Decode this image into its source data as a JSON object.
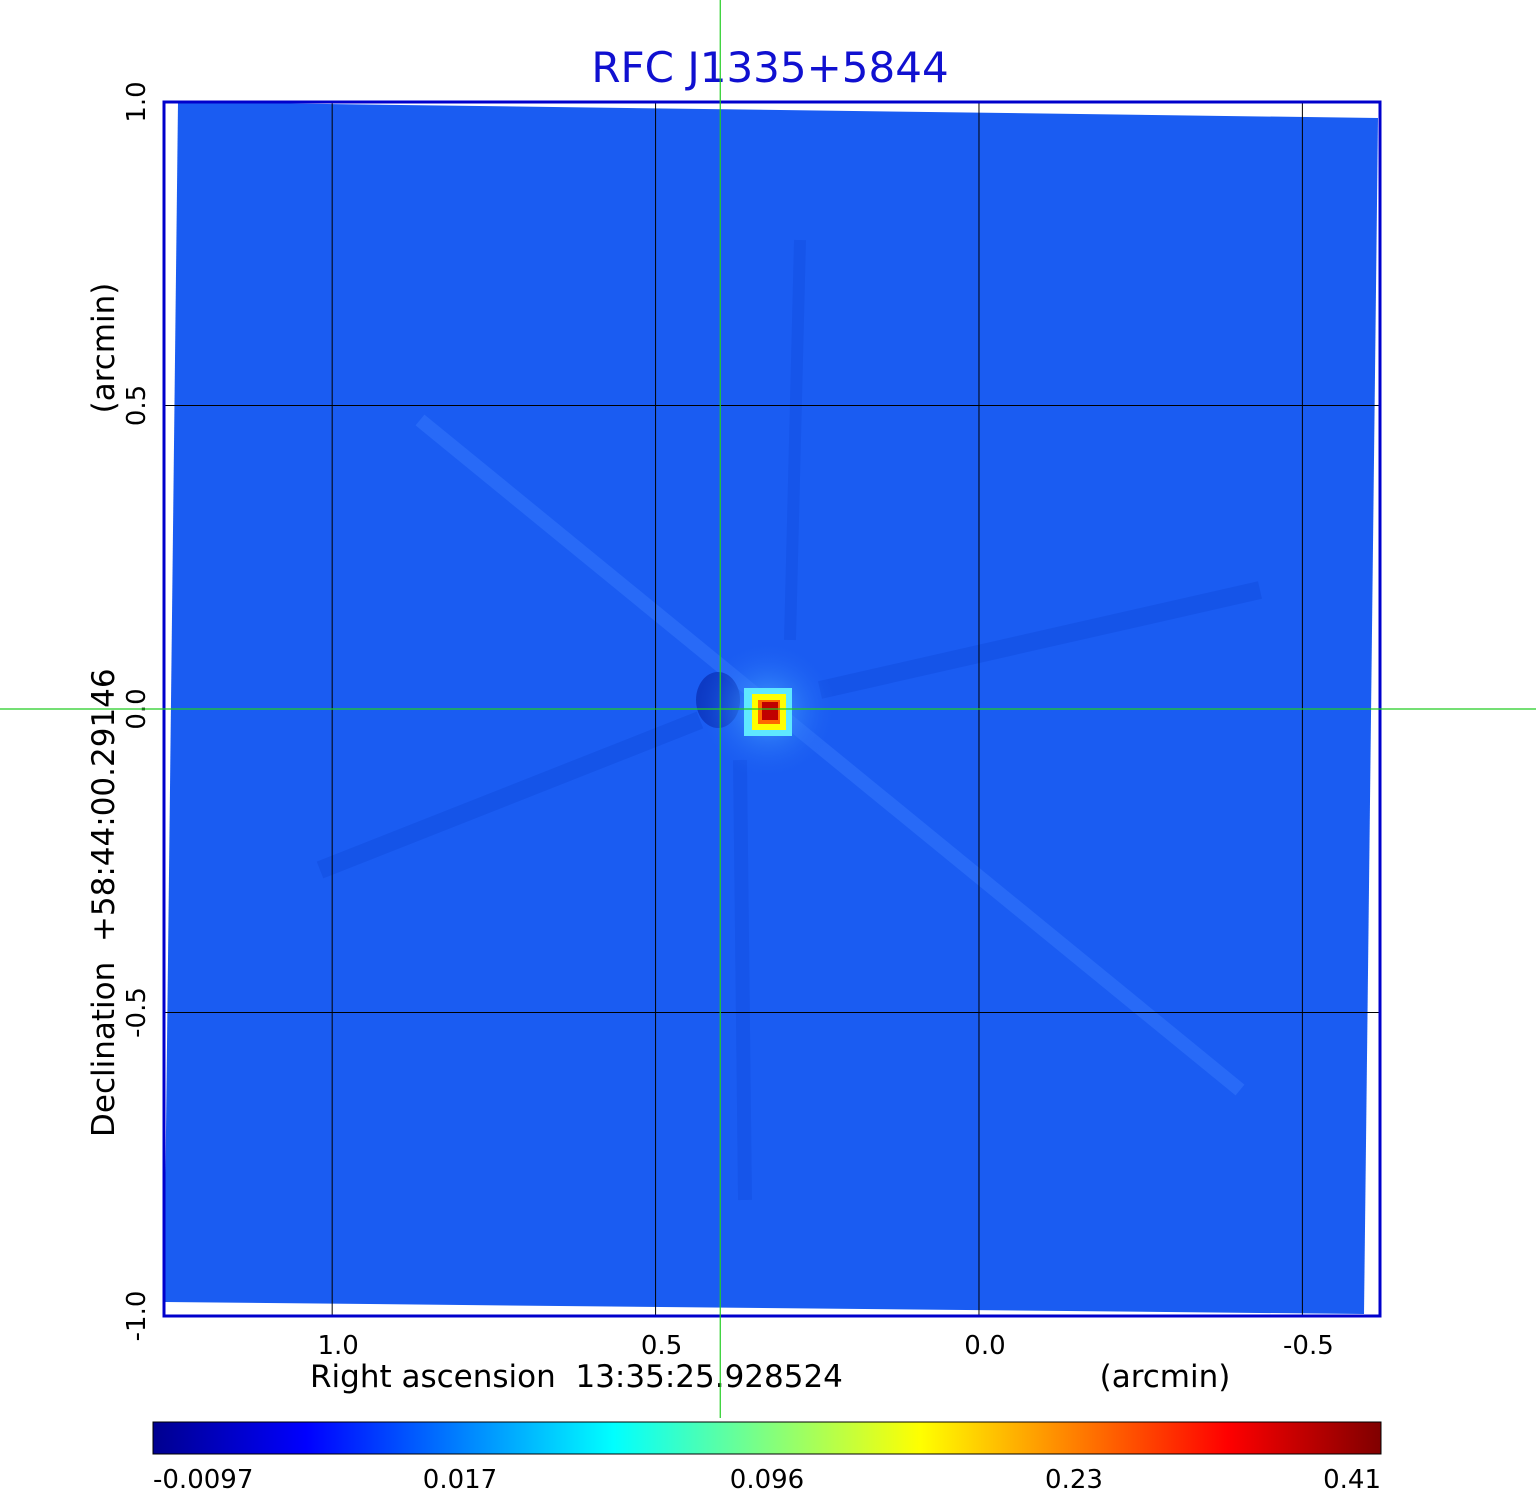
{
  "chart_data": {
    "type": "heatmap",
    "title": "RFC J1335+5844",
    "xlabel": "Right ascension  13:35:25.928524",
    "xunit": "(arcmin)",
    "ylabel": "Declination  +58:44:00.29146",
    "yunit": "(arcmin)",
    "xlim": [
      1.26,
      -0.62
    ],
    "ylim": [
      -1.0,
      1.0
    ],
    "x_ticks": [
      1.0,
      0.5,
      0.0,
      -0.5
    ],
    "x_tick_labels": [
      "1.0",
      "0.5",
      "0.0",
      "-0.5"
    ],
    "y_ticks": [
      1.0,
      0.5,
      0.0,
      -0.5,
      -1.0
    ],
    "y_tick_labels": [
      "1.0",
      "0.5",
      "0.0",
      "-0.5",
      "-1.0"
    ],
    "grid": true,
    "crosshair": {
      "x": 0.4,
      "y": 0.0,
      "color": "#22cc22"
    },
    "peak": {
      "x": 0.4,
      "y": 0.0,
      "value": 0.41
    },
    "colorbar": {
      "min": -0.0097,
      "max": 0.41,
      "tick_labels": [
        "-0.0097",
        "0.017",
        "0.096",
        "0.23",
        "0.41"
      ],
      "colormap": [
        "#00008f",
        "#0000ff",
        "#0080ff",
        "#00ffff",
        "#80ff80",
        "#ffff00",
        "#ff8000",
        "#ff0000",
        "#800000"
      ]
    },
    "background_color": "#1a5cf2",
    "frame_color": "#0000cc"
  }
}
